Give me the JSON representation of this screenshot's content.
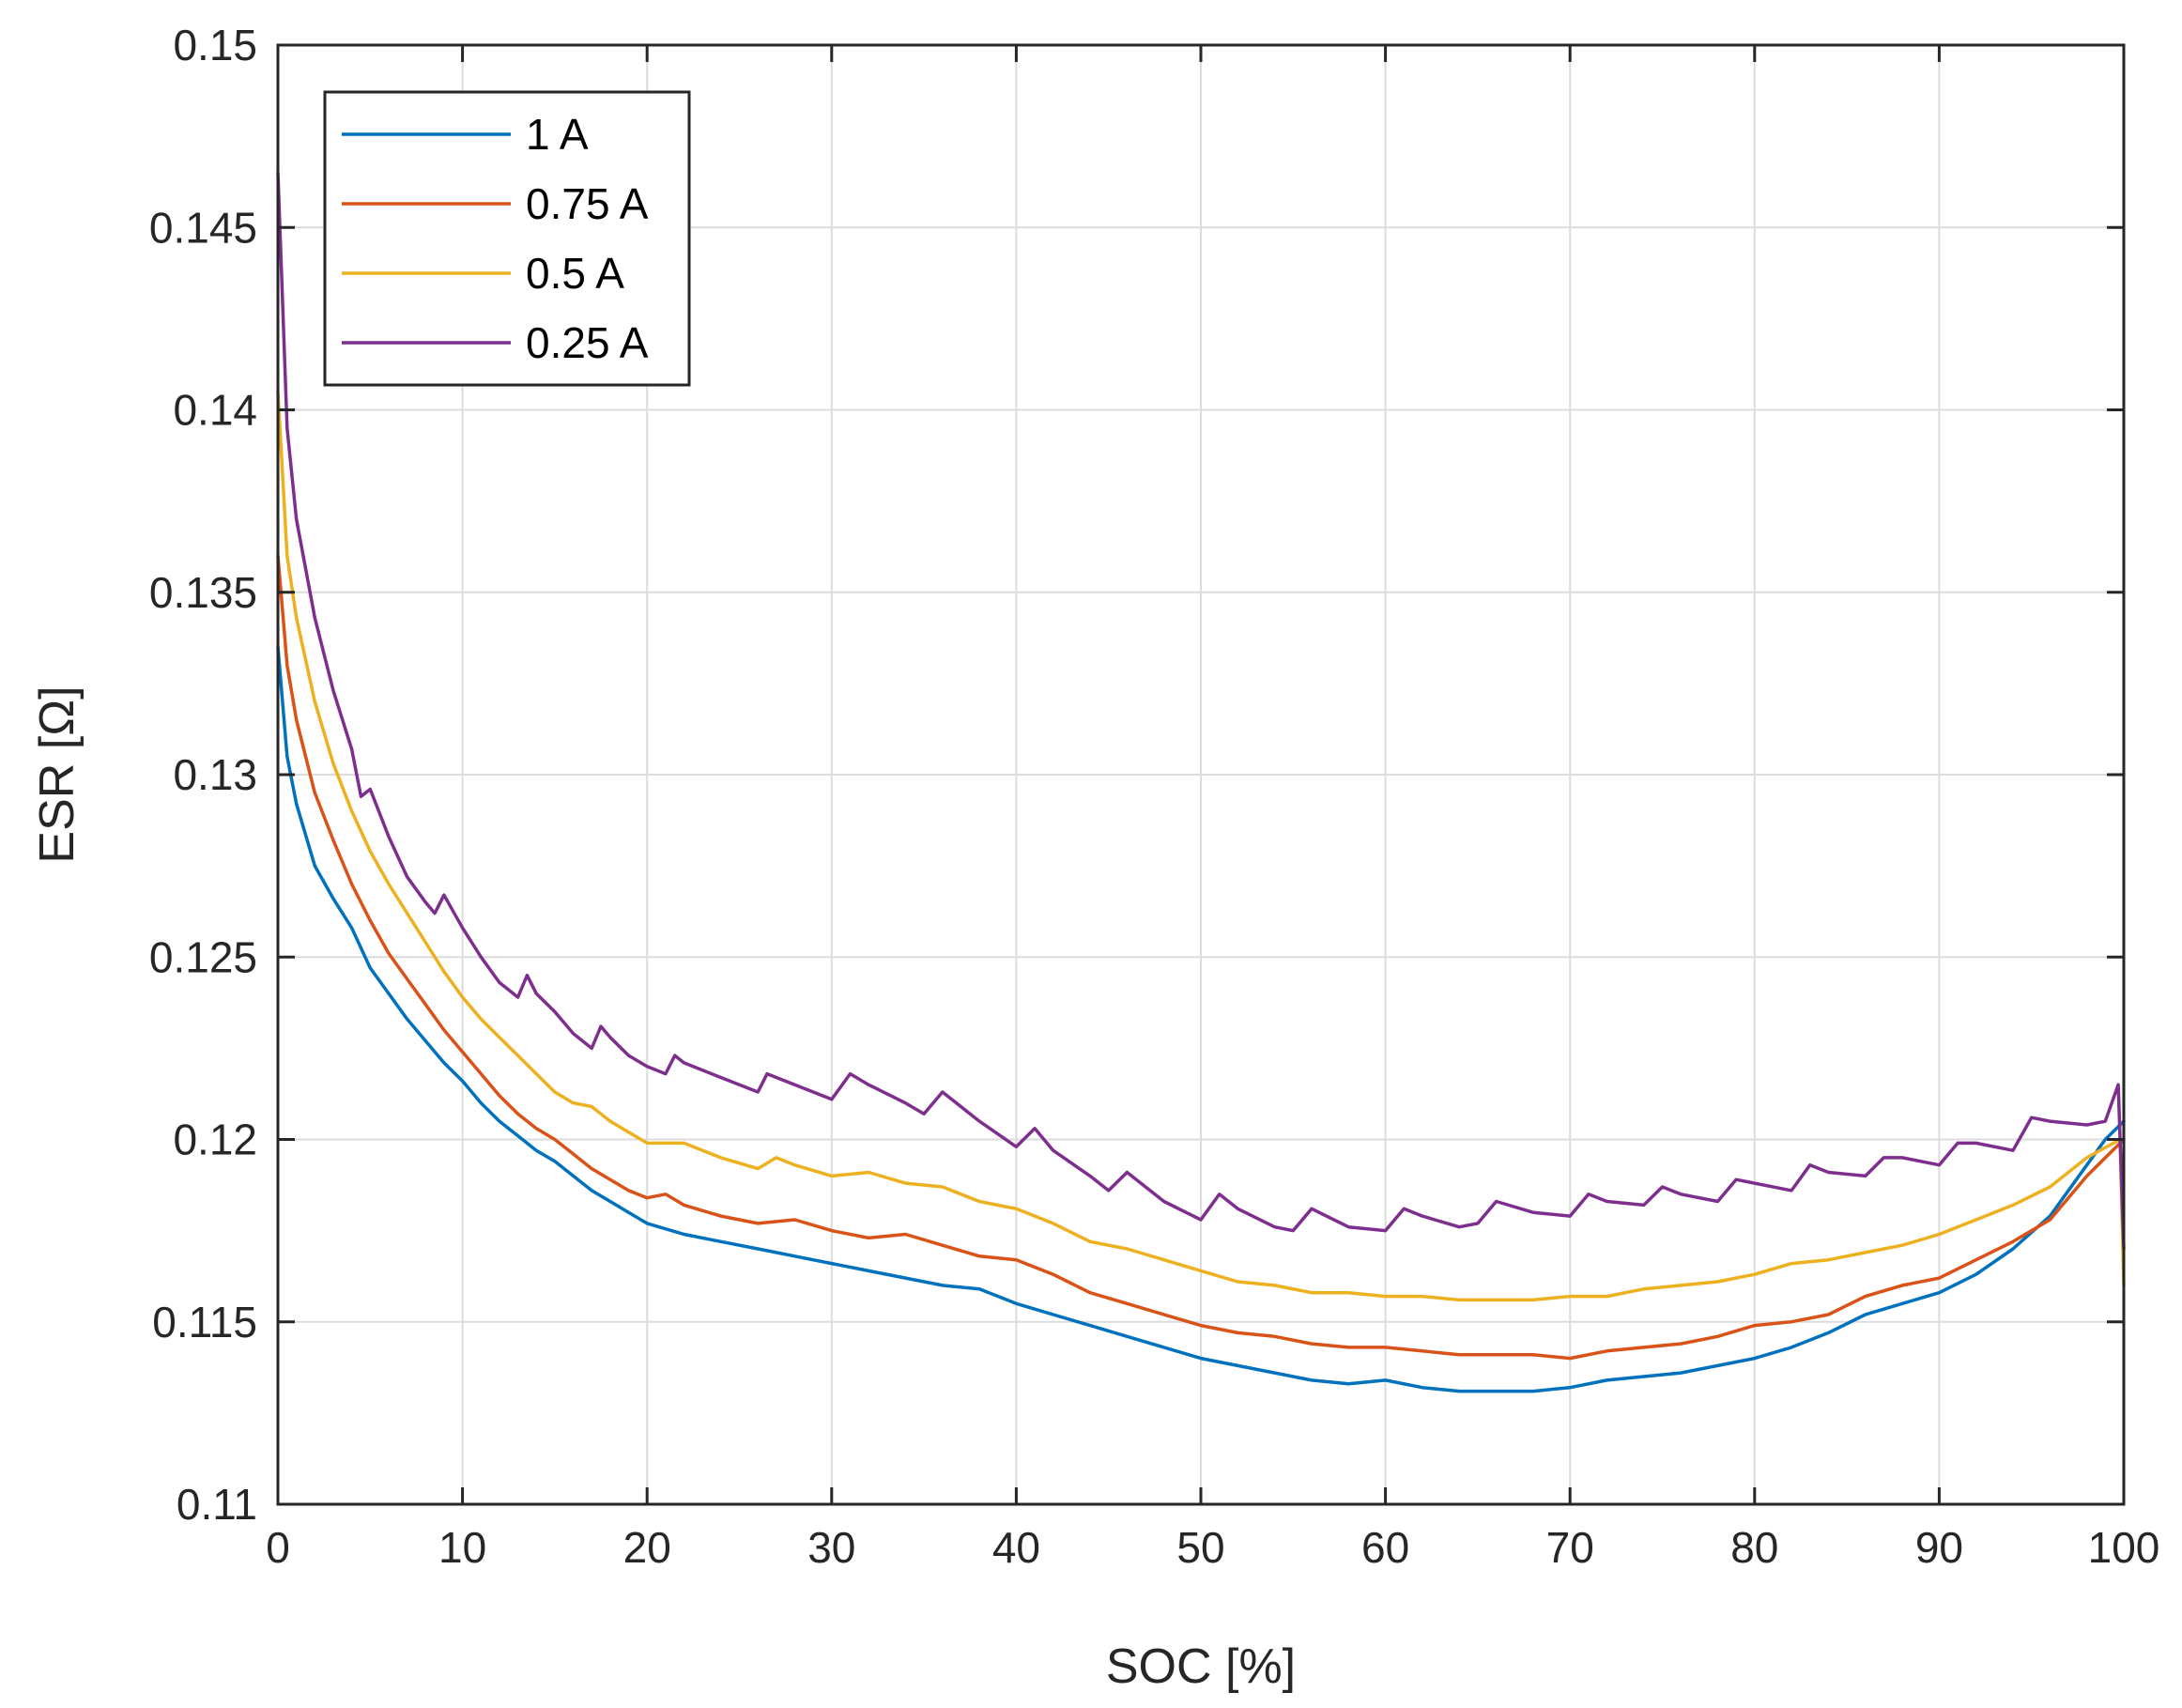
{
  "chart_data": {
    "type": "line",
    "title": "",
    "xlabel": "SOC [%]",
    "ylabel": "ESR [Ω]",
    "xlim": [
      0,
      100
    ],
    "ylim": [
      0.11,
      0.15
    ],
    "xticks": [
      0,
      10,
      20,
      30,
      40,
      50,
      60,
      70,
      80,
      90,
      100
    ],
    "xtick_labels": [
      "0",
      "10",
      "20",
      "30",
      "40",
      "50",
      "60",
      "70",
      "80",
      "90",
      "100"
    ],
    "yticks": [
      0.11,
      0.115,
      0.12,
      0.125,
      0.13,
      0.135,
      0.14,
      0.145,
      0.15
    ],
    "ytick_labels": [
      "0.11",
      "0.115",
      "0.12",
      "0.125",
      "0.13",
      "0.135",
      "0.14",
      "0.145",
      "0.15"
    ],
    "grid": true,
    "legend_position": "top-left",
    "series": [
      {
        "name": "1 A",
        "color": "#0072BD",
        "points": [
          [
            0,
            0.1335
          ],
          [
            0.5,
            0.1305
          ],
          [
            1,
            0.1292
          ],
          [
            2,
            0.1275
          ],
          [
            3,
            0.1266
          ],
          [
            4,
            0.1258
          ],
          [
            5,
            0.1247
          ],
          [
            6,
            0.124
          ],
          [
            7,
            0.1233
          ],
          [
            8,
            0.1227
          ],
          [
            9,
            0.1221
          ],
          [
            10,
            0.1216
          ],
          [
            11,
            0.121
          ],
          [
            12,
            0.1205
          ],
          [
            13,
            0.1201
          ],
          [
            14,
            0.1197
          ],
          [
            15,
            0.1194
          ],
          [
            16,
            0.119
          ],
          [
            17,
            0.1186
          ],
          [
            18,
            0.1183
          ],
          [
            19,
            0.118
          ],
          [
            20,
            0.1177
          ],
          [
            22,
            0.1174
          ],
          [
            24,
            0.1172
          ],
          [
            26,
            0.117
          ],
          [
            27,
            0.1169
          ],
          [
            28,
            0.1168
          ],
          [
            30,
            0.1166
          ],
          [
            32,
            0.1164
          ],
          [
            34,
            0.1162
          ],
          [
            36,
            0.116
          ],
          [
            38,
            0.1159
          ],
          [
            40,
            0.1155
          ],
          [
            42,
            0.1152
          ],
          [
            44,
            0.1149
          ],
          [
            46,
            0.1146
          ],
          [
            48,
            0.1143
          ],
          [
            50,
            0.114
          ],
          [
            52,
            0.1138
          ],
          [
            54,
            0.1136
          ],
          [
            56,
            0.1134
          ],
          [
            58,
            0.1133
          ],
          [
            60,
            0.1134
          ],
          [
            62,
            0.1132
          ],
          [
            64,
            0.1131
          ],
          [
            66,
            0.1131
          ],
          [
            68,
            0.1131
          ],
          [
            70,
            0.1132
          ],
          [
            72,
            0.1134
          ],
          [
            74,
            0.1135
          ],
          [
            76,
            0.1136
          ],
          [
            78,
            0.1138
          ],
          [
            80,
            0.114
          ],
          [
            82,
            0.1143
          ],
          [
            84,
            0.1147
          ],
          [
            86,
            0.1152
          ],
          [
            88,
            0.1155
          ],
          [
            90,
            0.1158
          ],
          [
            92,
            0.1163
          ],
          [
            94,
            0.117
          ],
          [
            96,
            0.1179
          ],
          [
            98,
            0.1193
          ],
          [
            99,
            0.12
          ],
          [
            100,
            0.1205
          ]
        ]
      },
      {
        "name": "0.75 A",
        "color": "#D95319",
        "points": [
          [
            0,
            0.136
          ],
          [
            0.5,
            0.133
          ],
          [
            1,
            0.1315
          ],
          [
            2,
            0.1295
          ],
          [
            3,
            0.1282
          ],
          [
            4,
            0.127
          ],
          [
            5,
            0.126
          ],
          [
            6,
            0.1251
          ],
          [
            7,
            0.1244
          ],
          [
            8,
            0.1237
          ],
          [
            9,
            0.123
          ],
          [
            10,
            0.1224
          ],
          [
            11,
            0.1218
          ],
          [
            12,
            0.1212
          ],
          [
            13,
            0.1207
          ],
          [
            14,
            0.1203
          ],
          [
            15,
            0.12
          ],
          [
            16,
            0.1196
          ],
          [
            17,
            0.1192
          ],
          [
            18,
            0.1189
          ],
          [
            19,
            0.1186
          ],
          [
            20,
            0.1184
          ],
          [
            21,
            0.1185
          ],
          [
            22,
            0.1182
          ],
          [
            24,
            0.1179
          ],
          [
            26,
            0.1177
          ],
          [
            28,
            0.1178
          ],
          [
            30,
            0.1175
          ],
          [
            32,
            0.1173
          ],
          [
            34,
            0.1174
          ],
          [
            36,
            0.1171
          ],
          [
            38,
            0.1168
          ],
          [
            40,
            0.1167
          ],
          [
            42,
            0.1163
          ],
          [
            44,
            0.1158
          ],
          [
            46,
            0.1155
          ],
          [
            48,
            0.1152
          ],
          [
            50,
            0.1149
          ],
          [
            52,
            0.1147
          ],
          [
            54,
            0.1146
          ],
          [
            56,
            0.1144
          ],
          [
            58,
            0.1143
          ],
          [
            60,
            0.1143
          ],
          [
            62,
            0.1142
          ],
          [
            64,
            0.1141
          ],
          [
            66,
            0.1141
          ],
          [
            68,
            0.1141
          ],
          [
            70,
            0.114
          ],
          [
            72,
            0.1142
          ],
          [
            74,
            0.1143
          ],
          [
            76,
            0.1144
          ],
          [
            78,
            0.1146
          ],
          [
            80,
            0.1149
          ],
          [
            82,
            0.115
          ],
          [
            84,
            0.1152
          ],
          [
            86,
            0.1157
          ],
          [
            88,
            0.116
          ],
          [
            90,
            0.1162
          ],
          [
            92,
            0.1167
          ],
          [
            94,
            0.1172
          ],
          [
            96,
            0.1178
          ],
          [
            98,
            0.119
          ],
          [
            100,
            0.12
          ]
        ]
      },
      {
        "name": "0.5 A",
        "color": "#EDB120",
        "points": [
          [
            0,
            0.1405
          ],
          [
            0.5,
            0.136
          ],
          [
            1,
            0.1343
          ],
          [
            2,
            0.132
          ],
          [
            3,
            0.1303
          ],
          [
            4,
            0.129
          ],
          [
            5,
            0.1279
          ],
          [
            6,
            0.127
          ],
          [
            7,
            0.1262
          ],
          [
            8,
            0.1254
          ],
          [
            9,
            0.1246
          ],
          [
            10,
            0.1239
          ],
          [
            11,
            0.1233
          ],
          [
            12,
            0.1228
          ],
          [
            13,
            0.1223
          ],
          [
            14,
            0.1218
          ],
          [
            15,
            0.1213
          ],
          [
            16,
            0.121
          ],
          [
            17,
            0.1209
          ],
          [
            18,
            0.1205
          ],
          [
            19,
            0.1202
          ],
          [
            20,
            0.1199
          ],
          [
            22,
            0.1199
          ],
          [
            24,
            0.1195
          ],
          [
            26,
            0.1192
          ],
          [
            27,
            0.1195
          ],
          [
            28,
            0.1193
          ],
          [
            30,
            0.119
          ],
          [
            32,
            0.1191
          ],
          [
            34,
            0.1188
          ],
          [
            36,
            0.1187
          ],
          [
            38,
            0.1183
          ],
          [
            40,
            0.1181
          ],
          [
            42,
            0.1177
          ],
          [
            44,
            0.1172
          ],
          [
            46,
            0.117
          ],
          [
            48,
            0.1167
          ],
          [
            50,
            0.1164
          ],
          [
            52,
            0.1161
          ],
          [
            54,
            0.116
          ],
          [
            56,
            0.1158
          ],
          [
            58,
            0.1158
          ],
          [
            60,
            0.1157
          ],
          [
            62,
            0.1157
          ],
          [
            64,
            0.1156
          ],
          [
            66,
            0.1156
          ],
          [
            68,
            0.1156
          ],
          [
            70,
            0.1157
          ],
          [
            72,
            0.1157
          ],
          [
            74,
            0.1159
          ],
          [
            76,
            0.116
          ],
          [
            78,
            0.1161
          ],
          [
            80,
            0.1163
          ],
          [
            82,
            0.1166
          ],
          [
            84,
            0.1167
          ],
          [
            86,
            0.1169
          ],
          [
            88,
            0.1171
          ],
          [
            90,
            0.1174
          ],
          [
            92,
            0.1178
          ],
          [
            94,
            0.1182
          ],
          [
            96,
            0.1187
          ],
          [
            98,
            0.1195
          ],
          [
            99.8,
            0.12
          ],
          [
            100,
            0.116
          ]
        ]
      },
      {
        "name": "0.25 A",
        "color": "#7E2F8E",
        "points": [
          [
            0,
            0.1465
          ],
          [
            0.5,
            0.1395
          ],
          [
            1,
            0.137
          ],
          [
            2,
            0.1343
          ],
          [
            3,
            0.1323
          ],
          [
            4,
            0.1307
          ],
          [
            4.5,
            0.1294
          ],
          [
            5,
            0.1296
          ],
          [
            6,
            0.1283
          ],
          [
            7,
            0.1272
          ],
          [
            8,
            0.1265
          ],
          [
            8.5,
            0.1262
          ],
          [
            9,
            0.1267
          ],
          [
            10,
            0.1258
          ],
          [
            11,
            0.125
          ],
          [
            12,
            0.1243
          ],
          [
            13,
            0.1239
          ],
          [
            13.5,
            0.1245
          ],
          [
            14,
            0.124
          ],
          [
            15,
            0.1235
          ],
          [
            16,
            0.1229
          ],
          [
            17,
            0.1225
          ],
          [
            17.5,
            0.1231
          ],
          [
            18,
            0.1228
          ],
          [
            19,
            0.1223
          ],
          [
            20,
            0.122
          ],
          [
            21,
            0.1218
          ],
          [
            21.5,
            0.1223
          ],
          [
            22,
            0.1221
          ],
          [
            24,
            0.1217
          ],
          [
            26,
            0.1213
          ],
          [
            26.5,
            0.1218
          ],
          [
            28,
            0.1215
          ],
          [
            30,
            0.1211
          ],
          [
            31,
            0.1218
          ],
          [
            32,
            0.1215
          ],
          [
            34,
            0.121
          ],
          [
            35,
            0.1207
          ],
          [
            36,
            0.1213
          ],
          [
            38,
            0.1205
          ],
          [
            40,
            0.1198
          ],
          [
            41,
            0.1203
          ],
          [
            42,
            0.1197
          ],
          [
            44,
            0.119
          ],
          [
            45,
            0.1186
          ],
          [
            46,
            0.1191
          ],
          [
            48,
            0.1183
          ],
          [
            50,
            0.1178
          ],
          [
            51,
            0.1185
          ],
          [
            52,
            0.1181
          ],
          [
            54,
            0.1176
          ],
          [
            55,
            0.1175
          ],
          [
            56,
            0.1181
          ],
          [
            58,
            0.1176
          ],
          [
            60,
            0.1175
          ],
          [
            61,
            0.1181
          ],
          [
            62,
            0.1179
          ],
          [
            64,
            0.1176
          ],
          [
            65,
            0.1177
          ],
          [
            66,
            0.1183
          ],
          [
            68,
            0.118
          ],
          [
            70,
            0.1179
          ],
          [
            71,
            0.1185
          ],
          [
            72,
            0.1183
          ],
          [
            74,
            0.1182
          ],
          [
            75,
            0.1187
          ],
          [
            76,
            0.1185
          ],
          [
            78,
            0.1183
          ],
          [
            79,
            0.1189
          ],
          [
            80,
            0.1188
          ],
          [
            82,
            0.1186
          ],
          [
            83,
            0.1193
          ],
          [
            84,
            0.1191
          ],
          [
            86,
            0.119
          ],
          [
            87,
            0.1195
          ],
          [
            88,
            0.1195
          ],
          [
            90,
            0.1193
          ],
          [
            91,
            0.1199
          ],
          [
            92,
            0.1199
          ],
          [
            94,
            0.1197
          ],
          [
            95,
            0.1206
          ],
          [
            96,
            0.1205
          ],
          [
            98,
            0.1204
          ],
          [
            99,
            0.1205
          ],
          [
            99.7,
            0.1215
          ],
          [
            100,
            0.117
          ]
        ]
      }
    ]
  }
}
